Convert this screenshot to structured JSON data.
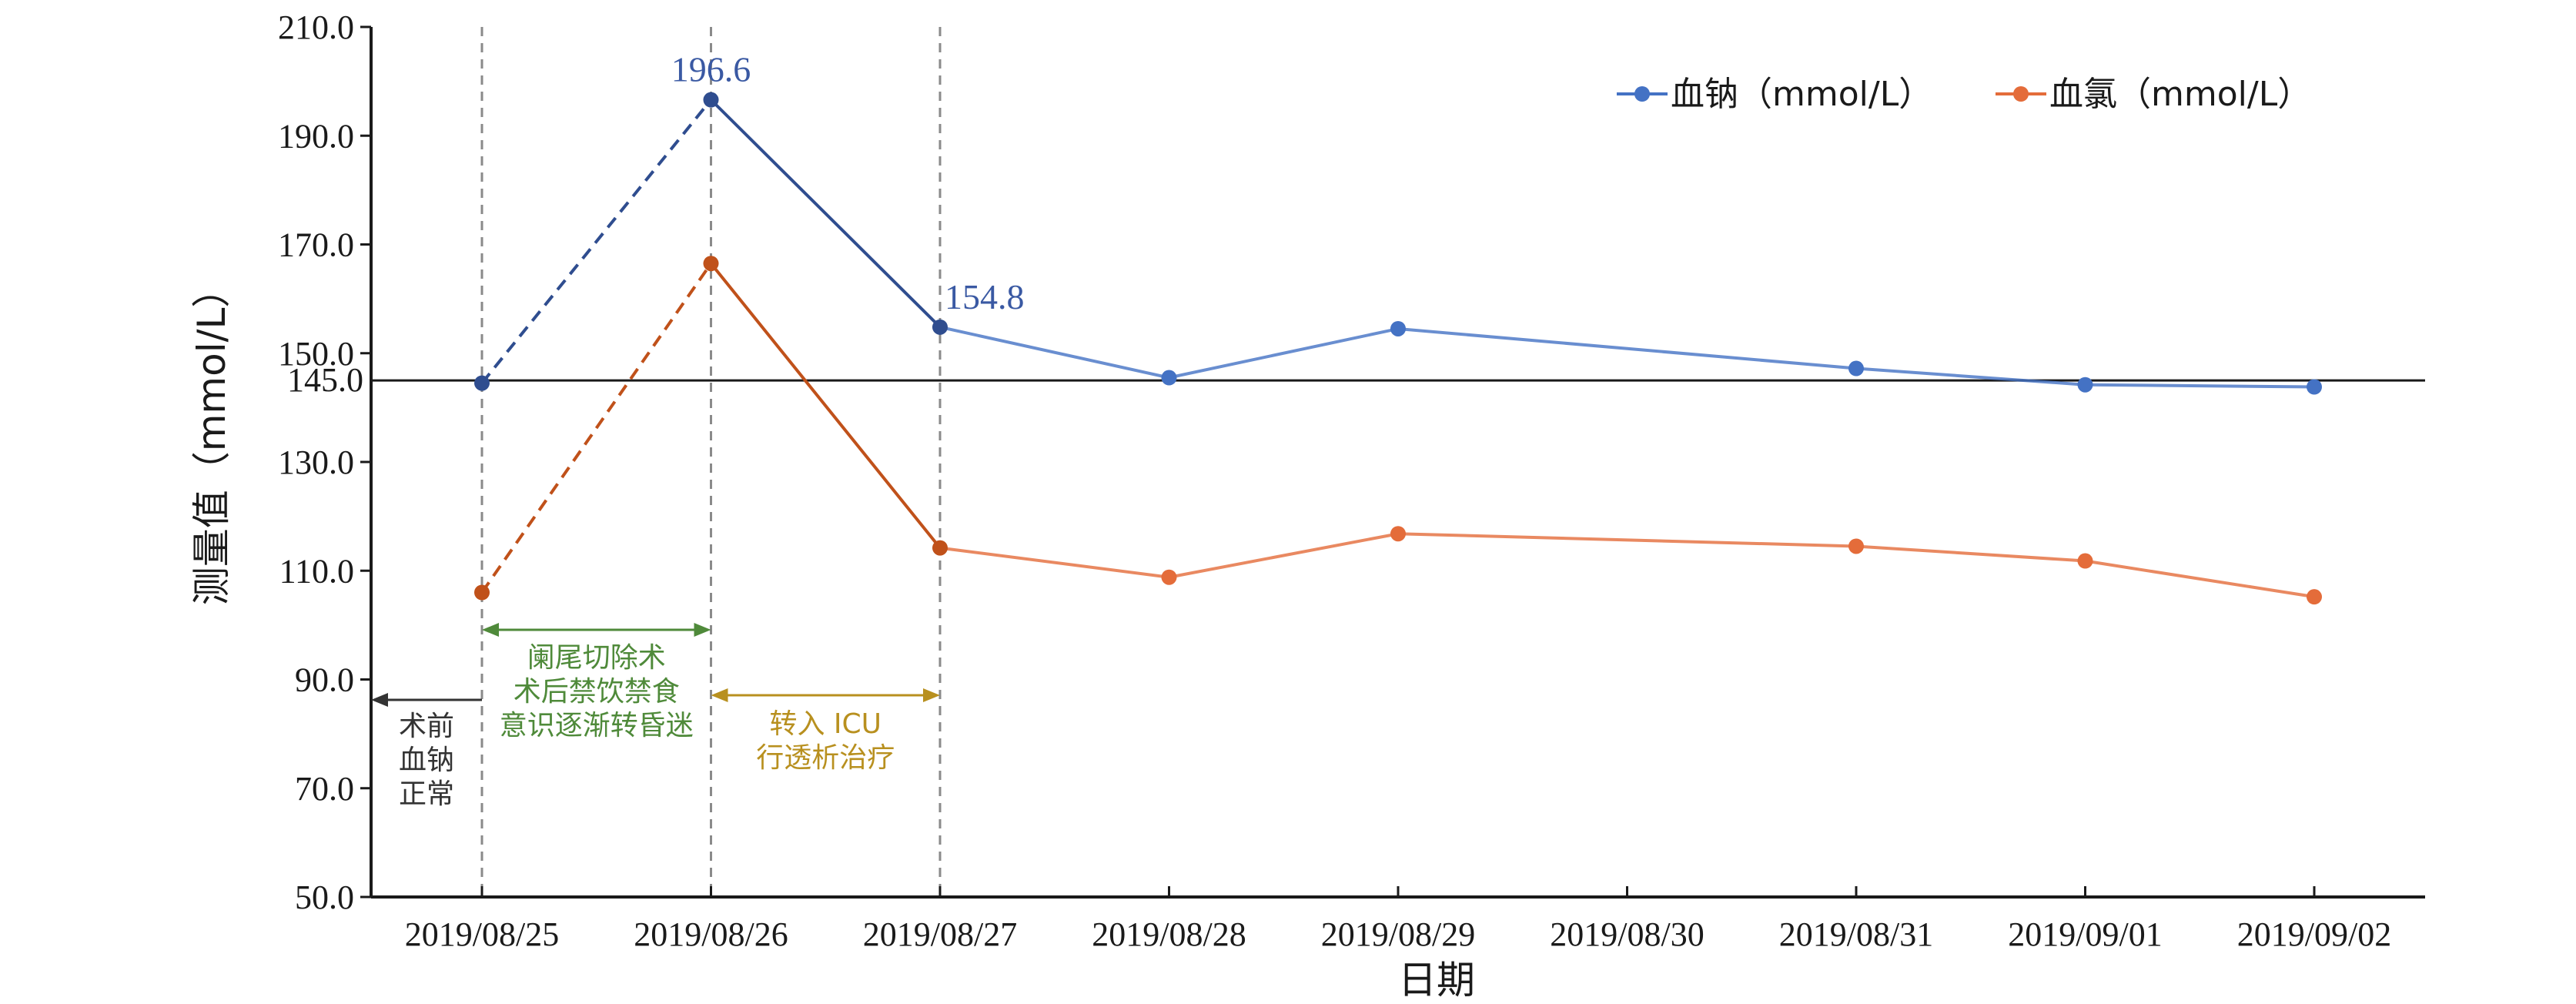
{
  "chart_data": {
    "type": "line",
    "xlabel": "日期",
    "ylabel": "测量值（mmol/L）",
    "ylim": [
      50,
      210
    ],
    "yticks": [
      "50.0",
      "70.0",
      "90.0",
      "110.0",
      "130.0",
      "150.0",
      "170.0",
      "190.0",
      "210.0"
    ],
    "categories": [
      "2019/08/25",
      "2019/08/26",
      "2019/08/27",
      "2019/08/28",
      "2019/08/29",
      "2019/08/30",
      "2019/08/31",
      "2019/09/01",
      "2019/09/02"
    ],
    "reference_line": {
      "value": 145,
      "label": "145.0"
    },
    "series": [
      {
        "name": "血钠（mmol/L）",
        "color": "#4472c4",
        "dashed_segment_color": "#2f4d8f",
        "points": [
          {
            "x": "2019/08/25",
            "y": 144.5
          },
          {
            "x": "2019/08/26",
            "y": 196.6
          },
          {
            "x": "2019/08/27",
            "y": 154.8
          },
          {
            "x": "2019/08/28",
            "y": 145.5
          },
          {
            "x": "2019/08/29",
            "y": 154.5
          },
          {
            "x": "2019/08/31",
            "y": 147.2
          },
          {
            "x": "2019/09/01",
            "y": 144.2
          },
          {
            "x": "2019/09/02",
            "y": 143.8
          }
        ],
        "data_labels": [
          {
            "x": "2019/08/26",
            "text": "196.6"
          },
          {
            "x": "2019/08/27",
            "text": "154.8"
          }
        ]
      },
      {
        "name": "血氯（mmol/L）",
        "color": "#e46c3a",
        "dashed_segment_color": "#c0511a",
        "points": [
          {
            "x": "2019/08/25",
            "y": 106
          },
          {
            "x": "2019/08/26",
            "y": 166.5
          },
          {
            "x": "2019/08/27",
            "y": 114.2
          },
          {
            "x": "2019/08/28",
            "y": 108.8
          },
          {
            "x": "2019/08/29",
            "y": 116.8
          },
          {
            "x": "2019/08/31",
            "y": 114.5
          },
          {
            "x": "2019/09/01",
            "y": 111.8
          },
          {
            "x": "2019/09/02",
            "y": 105.2
          }
        ]
      }
    ],
    "legend_position": "top-right",
    "grid": false,
    "phase_markers": [
      "2019/08/25",
      "2019/08/26",
      "2019/08/27"
    ],
    "annotations": [
      {
        "lines": [
          "术前",
          "血钠",
          "正常"
        ],
        "color": "#333333",
        "arrow": "left",
        "from": "2019/08/25"
      },
      {
        "lines": [
          "阑尾切除术",
          "术后禁饮禁食",
          "意识逐渐转昏迷"
        ],
        "color": "#4f8a3a",
        "arrow": "both",
        "from": "2019/08/25",
        "to": "2019/08/26"
      },
      {
        "lines": [
          "转入 ICU",
          "行透析治疗"
        ],
        "color": "#b8901f",
        "arrow": "both",
        "from": "2019/08/26",
        "to": "2019/08/27"
      }
    ]
  }
}
